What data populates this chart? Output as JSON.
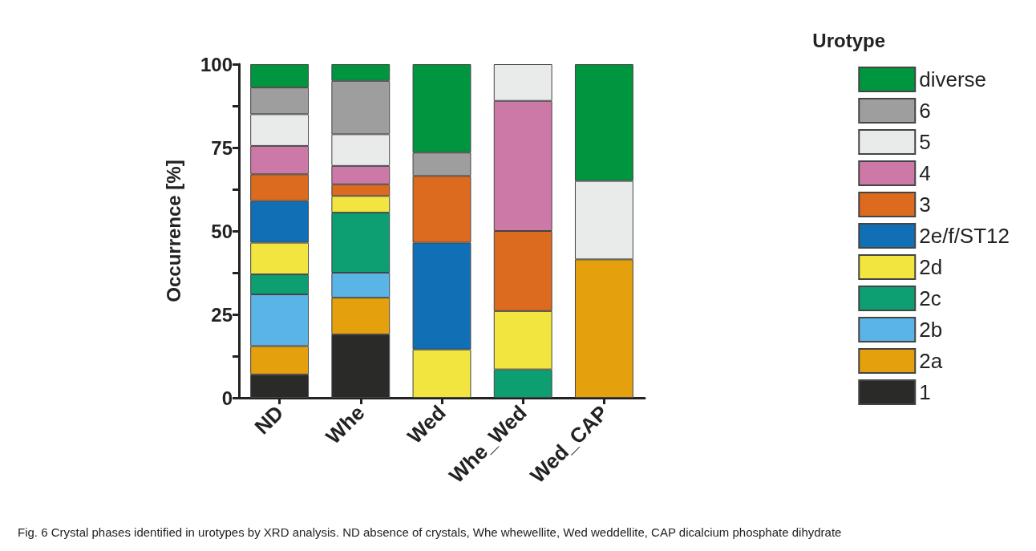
{
  "chart_data": {
    "type": "bar",
    "stacked": true,
    "ylabel": "Occurrence [%]",
    "legend_title": "Urotype",
    "legend": "right",
    "categories": [
      "ND",
      "Whe",
      "Wed",
      "Whe_Wed",
      "Wed_CAP"
    ],
    "ylim": [
      0,
      100
    ],
    "yticks": [
      0,
      {
        "value": 12.5,
        "label": null
      },
      25,
      {
        "value": 37.5,
        "label": null
      },
      50,
      {
        "value": 62.5,
        "label": null
      },
      75,
      {
        "value": 87.5,
        "label": null
      },
      100
    ],
    "grid": false,
    "series": [
      {
        "name": "1",
        "color": "#2a2a28",
        "values": [
          7,
          19,
          null,
          null,
          null
        ]
      },
      {
        "name": "2a",
        "color": "#e5a00d",
        "values": [
          8.5,
          11,
          null,
          null,
          41.5
        ]
      },
      {
        "name": "2b",
        "color": "#5ab4e5",
        "values": [
          15.5,
          7.5,
          null,
          null,
          null
        ]
      },
      {
        "name": "2c",
        "color": "#0d9e72",
        "values": [
          6,
          18,
          null,
          8.5,
          null
        ]
      },
      {
        "name": "2d",
        "color": "#f2e540",
        "values": [
          9.5,
          5,
          14.5,
          17.5,
          null
        ]
      },
      {
        "name": "2e/f/ST12",
        "color": "#1170b5",
        "values": [
          12.5,
          null,
          32,
          null,
          null
        ]
      },
      {
        "name": "3",
        "color": "#dc6a1f",
        "values": [
          8,
          3.5,
          20,
          24,
          null
        ]
      },
      {
        "name": "4",
        "color": "#cd79a8",
        "values": [
          8.5,
          5.5,
          null,
          39,
          null
        ]
      },
      {
        "name": "5",
        "color": "#e9ebea",
        "values": [
          9.5,
          9.5,
          null,
          11,
          23.5
        ]
      },
      {
        "name": "6",
        "color": "#9d9e9d",
        "values": [
          8,
          16,
          7,
          null,
          null
        ]
      },
      {
        "name": "diverse",
        "color": "#009640",
        "values": [
          7,
          5,
          26.5,
          null,
          35
        ]
      }
    ],
    "annotations": [
      "Fig. 6 Crystal phases identified in urotypes by XRD analysis. ND absence of crystals, Whe whewellite, Wed weddellite, CAP dicalcium phosphate dihydrate"
    ]
  }
}
